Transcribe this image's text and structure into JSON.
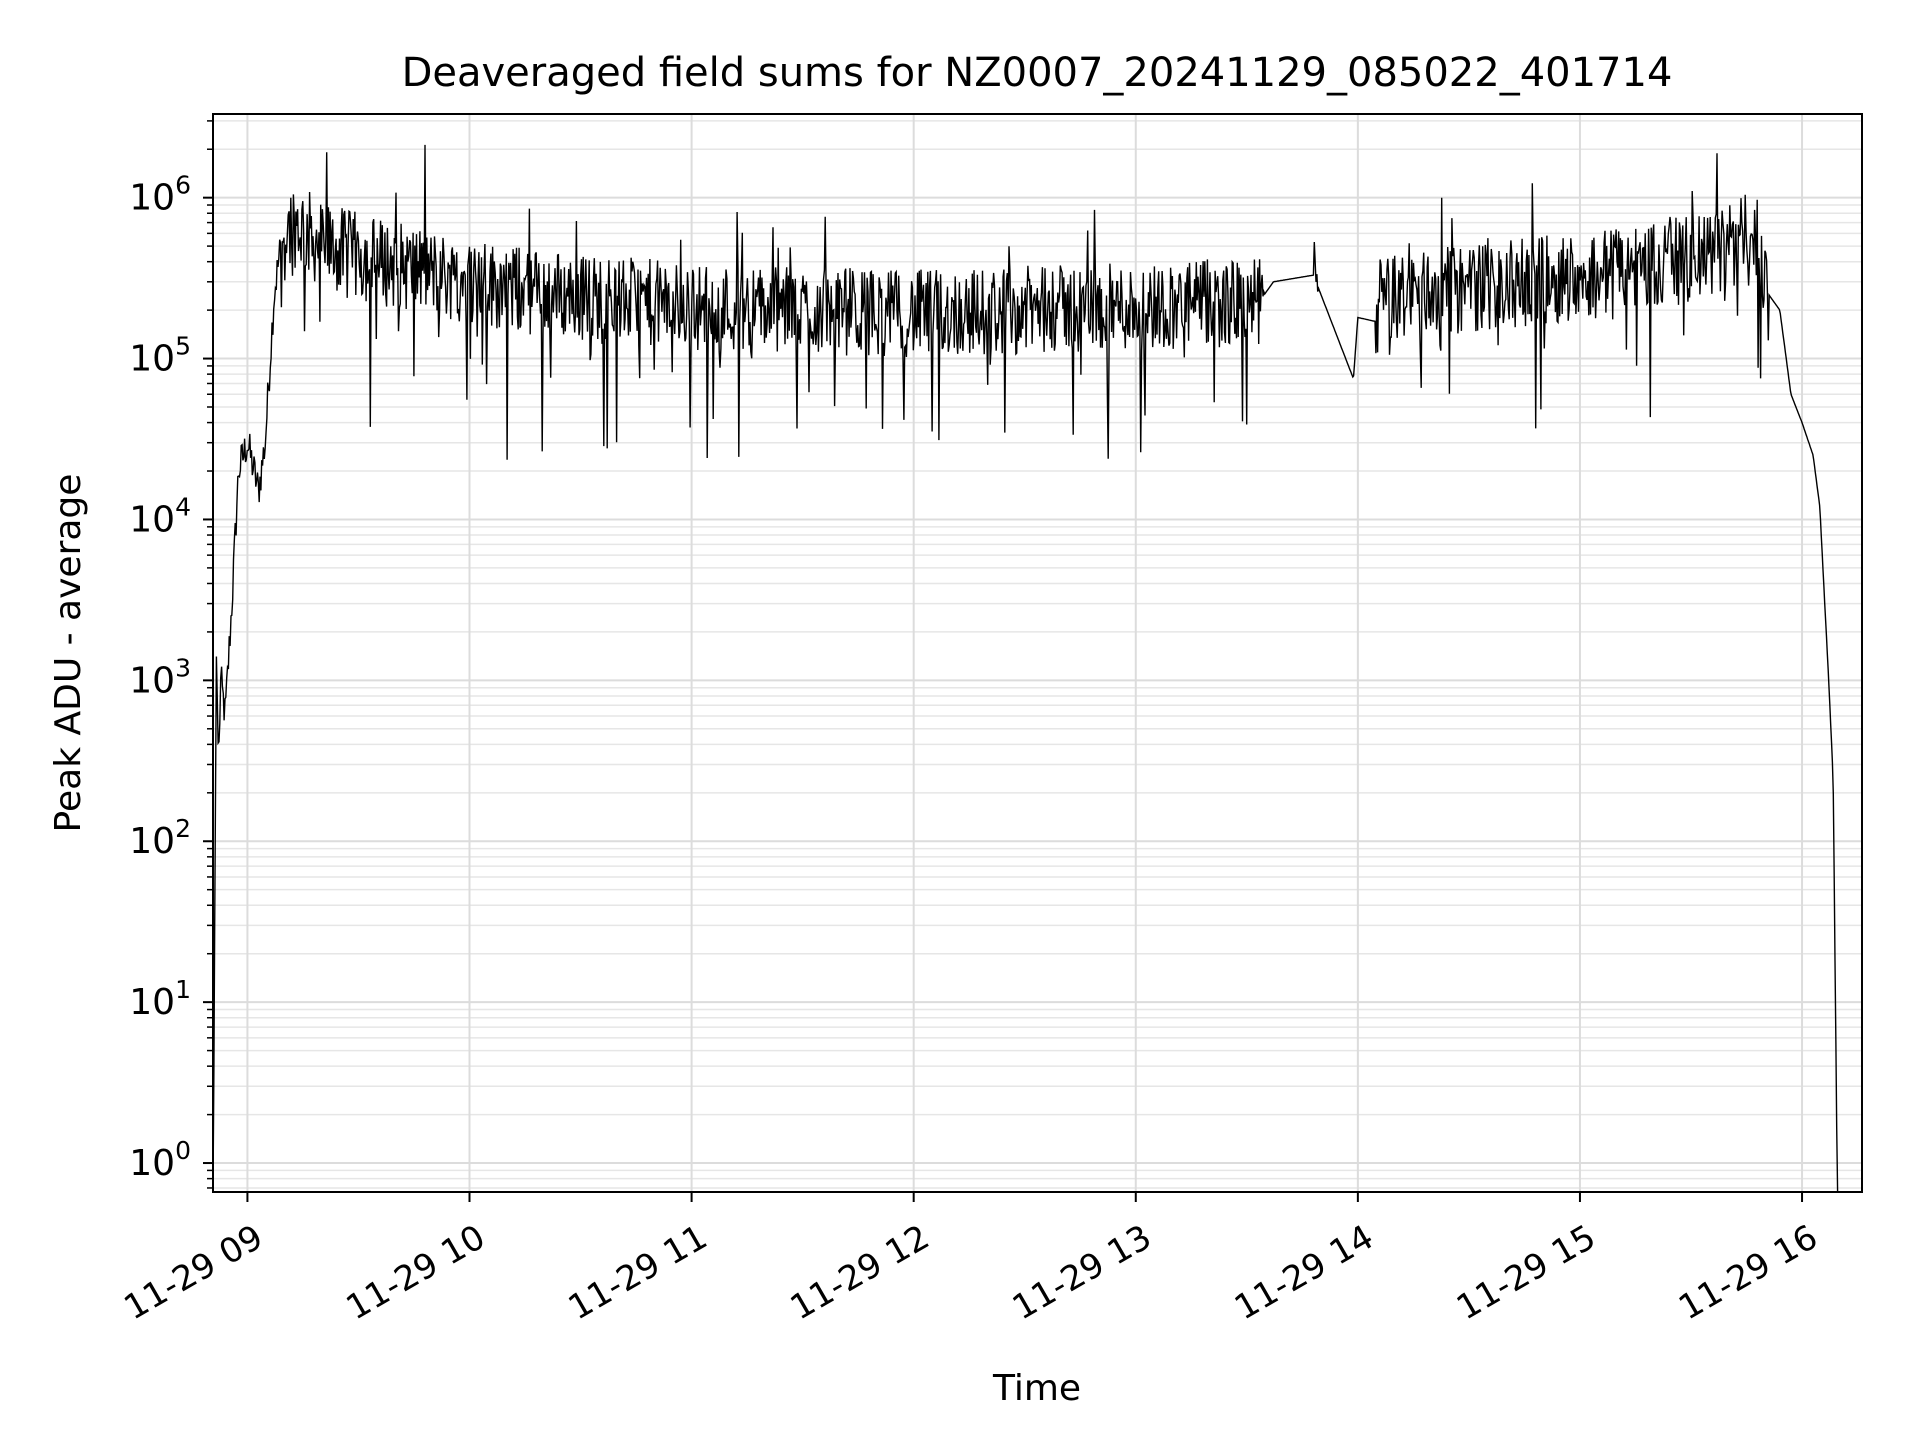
{
  "chart_data": {
    "type": "line",
    "title": "Deaveraged field sums for NZ0007_20241129_085022_401714",
    "xlabel": "Time",
    "ylabel": "Peak ADU - average",
    "yscale": "log",
    "grid": "on (major and minor)",
    "x_ticks": [
      "11-29 09",
      "11-29 10",
      "11-29 11",
      "11-29 12",
      "11-29 13",
      "11-29 14",
      "11-29 15",
      "11-29 16"
    ],
    "x_tick_hours": [
      9,
      10,
      11,
      12,
      13,
      14,
      15,
      16
    ],
    "xlim_hours": [
      8.845,
      16.27
    ],
    "y_tick_exponents": [
      0,
      1,
      2,
      3,
      4,
      5,
      6
    ],
    "ylim_log10": [
      -0.18,
      6.52
    ],
    "line_color": "#000000",
    "series": [
      {
        "values_description_unused": "",
        "x_hours": [
          8.845,
          8.86,
          8.87,
          8.88,
          8.9,
          8.93,
          8.96,
          9.0,
          9.05,
          9.08,
          9.12,
          9.15,
          9.2,
          9.25,
          9.3,
          9.35,
          9.45,
          9.6,
          9.8,
          10.0,
          10.3,
          10.7,
          11.0,
          11.5,
          12.0,
          12.5,
          13.0,
          13.3,
          13.55,
          13.62,
          13.8,
          13.82,
          13.98,
          14.0,
          14.08,
          14.1,
          14.3,
          14.7,
          15.0,
          15.3,
          15.55,
          15.7,
          15.8,
          15.85,
          15.9,
          15.95,
          16.0,
          16.05,
          16.08,
          16.12,
          16.14,
          16.16
        ],
        "y_values": [
          0.5,
          1500,
          300,
          1000,
          600,
          3000,
          20000,
          30000,
          15000,
          30000,
          250000,
          500000,
          700000,
          650000,
          550000,
          500000,
          450000,
          400000,
          350000,
          300000,
          260000,
          230000,
          210000,
          200000,
          190000,
          200000,
          210000,
          220000,
          220000,
          300000,
          330000,
          280000,
          75000,
          180000,
          170000,
          230000,
          260000,
          290000,
          330000,
          380000,
          420000,
          520000,
          600000,
          250000,
          200000,
          60000,
          40000,
          25000,
          12000,
          1000,
          250,
          0.5
        ]
      }
    ]
  }
}
